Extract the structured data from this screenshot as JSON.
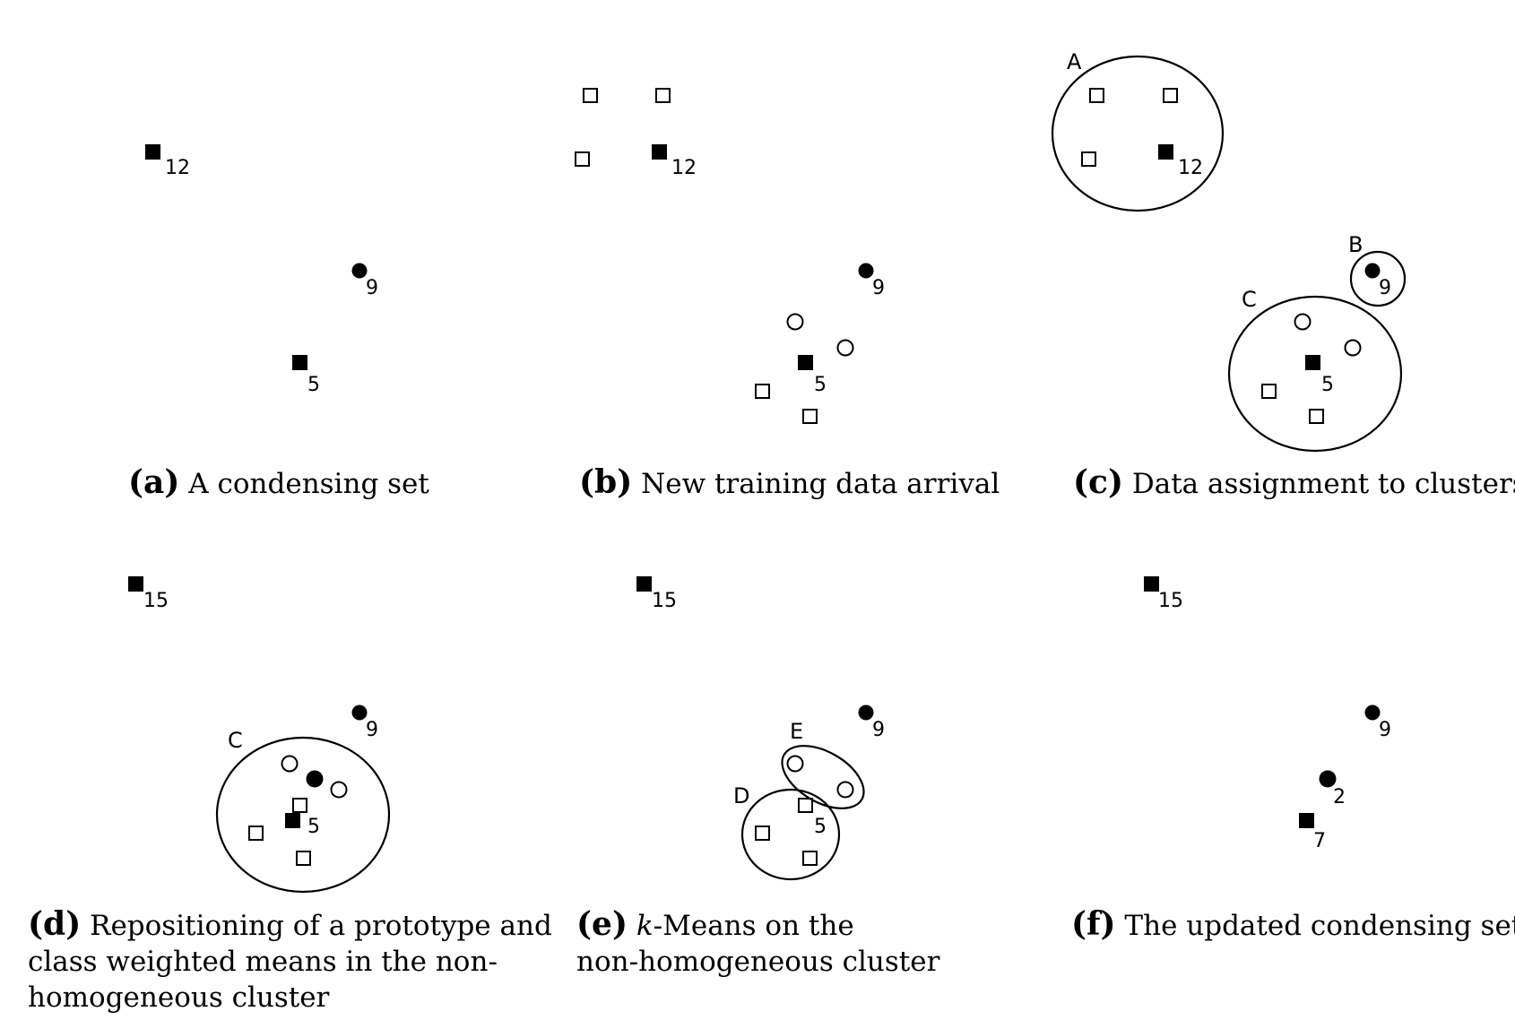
{
  "panels": [
    {
      "id": "a",
      "caption": {
        "tag": "(a)",
        "lines": [
          "A condensing set"
        ]
      },
      "labels": [
        "12",
        "9",
        "5"
      ],
      "cluster_labels": []
    },
    {
      "id": "b",
      "caption": {
        "tag": "(b)",
        "lines": [
          "New training data arrival"
        ]
      },
      "labels": [
        "12",
        "9",
        "5"
      ],
      "cluster_labels": []
    },
    {
      "id": "c",
      "caption": {
        "tag": "(c)",
        "lines": [
          "Data assignment to clusters"
        ]
      },
      "labels": [
        "12",
        "9",
        "5"
      ],
      "cluster_labels": [
        "A",
        "B",
        "C"
      ]
    },
    {
      "id": "d",
      "caption": {
        "tag": "(d)",
        "lines": [
          "Repositioning of a prototype and",
          "class weighted means in the non-",
          "homogeneous cluster"
        ]
      },
      "labels": [
        "15",
        "9",
        "5"
      ],
      "cluster_labels": [
        "C"
      ]
    },
    {
      "id": "e",
      "caption": {
        "tag": "(e)",
        "k_var": "k",
        "lines": [
          "-Means on  the",
          "non-homogeneous cluster"
        ]
      },
      "labels": [
        "15",
        "9",
        "5"
      ],
      "cluster_labels": [
        "E",
        "D"
      ]
    },
    {
      "id": "f",
      "caption": {
        "tag": "(f)",
        "lines": [
          "The updated condensing set"
        ]
      },
      "labels": [
        "15",
        "9",
        "2",
        "7"
      ],
      "cluster_labels": []
    }
  ],
  "marker_types": [
    "filled-square-prototype",
    "hollow-square-sample",
    "filled-circle-prototype",
    "hollow-circle-sample"
  ]
}
